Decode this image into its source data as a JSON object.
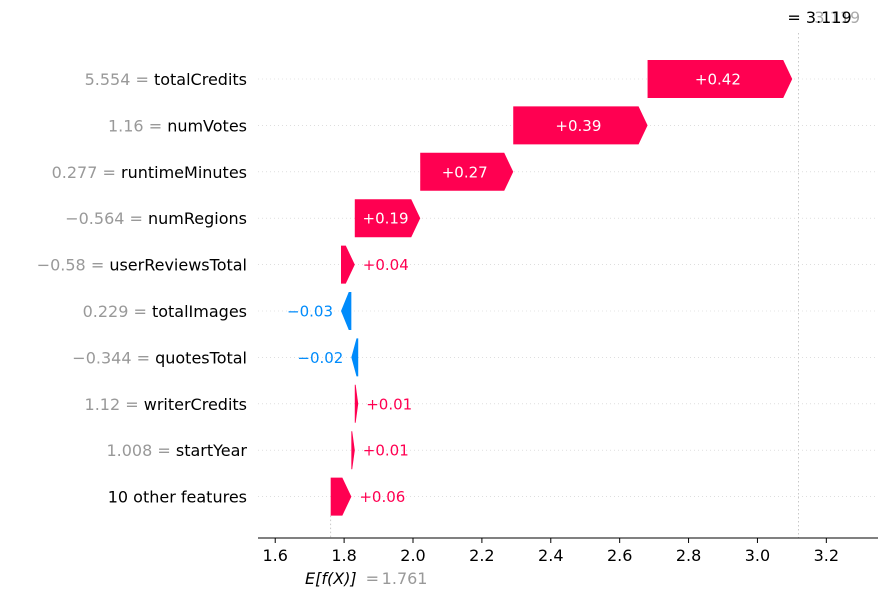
{
  "chart_data": {
    "type": "waterfall",
    "base_value": 1.761,
    "base_value_label": "1.761",
    "base_label_text": "E[f(X)]",
    "base_label_eq": "=",
    "output_value": 3.119,
    "output_label": "= 3.119",
    "output_label_ghost": "3.119",
    "features": [
      {
        "value_text": "5.554",
        "name": "totalCredits",
        "shap": 0.42,
        "label": "+0.42"
      },
      {
        "value_text": "1.16",
        "name": "numVotes",
        "shap": 0.39,
        "label": "+0.39"
      },
      {
        "value_text": "0.277",
        "name": "runtimeMinutes",
        "shap": 0.27,
        "label": "+0.27"
      },
      {
        "value_text": "−0.564",
        "name": "numRegions",
        "shap": 0.19,
        "label": "+0.19"
      },
      {
        "value_text": "−0.58",
        "name": "userReviewsTotal",
        "shap": 0.04,
        "label": "+0.04"
      },
      {
        "value_text": "0.229",
        "name": "totalImages",
        "shap": -0.03,
        "label": "−0.03"
      },
      {
        "value_text": "−0.344",
        "name": "quotesTotal",
        "shap": -0.02,
        "label": "−0.02"
      },
      {
        "value_text": "1.12",
        "name": "writerCredits",
        "shap": 0.01,
        "label": "+0.01"
      },
      {
        "value_text": "1.008",
        "name": "startYear",
        "shap": 0.01,
        "label": "+0.01"
      },
      {
        "value_text": "",
        "name": "10 other features",
        "shap": 0.06,
        "label": "+0.06"
      }
    ],
    "xlim": [
      1.55,
      3.35
    ],
    "xticks": [
      "1.6",
      "1.8",
      "2.0",
      "2.2",
      "2.4",
      "2.6",
      "2.8",
      "3.0",
      "3.2"
    ],
    "colors": {
      "positive": "#ff0051",
      "negative": "#008bfb"
    }
  }
}
